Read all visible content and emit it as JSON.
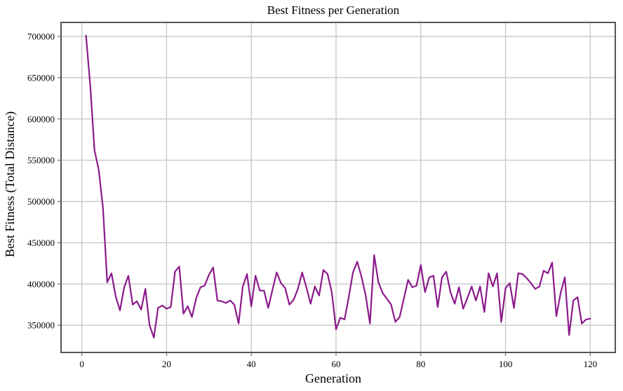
{
  "chart_data": {
    "type": "line",
    "title": "Best Fitness per Generation",
    "xlabel": "Generation",
    "ylabel": "Best Fitness (Total Distance)",
    "xlim": [
      -4.9,
      125.9
    ],
    "ylim": [
      317000,
      717000
    ],
    "x_ticks": [
      0,
      20,
      40,
      60,
      80,
      100,
      120
    ],
    "x_tick_labels": [
      "0",
      "20",
      "40",
      "60",
      "80",
      "100",
      "120"
    ],
    "y_ticks": [
      350000,
      400000,
      450000,
      500000,
      550000,
      600000,
      650000,
      700000
    ],
    "y_tick_labels": [
      "350000",
      "400000",
      "450000",
      "500000",
      "550000",
      "600000",
      "650000",
      "700000"
    ],
    "grid": true,
    "line_color": "#8b1a8b",
    "series": [
      {
        "name": "",
        "x": [
          1,
          2,
          3,
          4,
          5,
          6,
          7,
          8,
          9,
          10,
          11,
          12,
          13,
          14,
          15,
          16,
          17,
          18,
          19,
          20,
          21,
          22,
          23,
          24,
          25,
          26,
          27,
          28,
          29,
          30,
          31,
          32,
          33,
          34,
          35,
          36,
          37,
          38,
          39,
          40,
          41,
          42,
          43,
          44,
          45,
          46,
          47,
          48,
          49,
          50,
          51,
          52,
          53,
          54,
          55,
          56,
          57,
          58,
          59,
          60,
          61,
          62,
          63,
          64,
          65,
          66,
          67,
          68,
          69,
          70,
          71,
          72,
          73,
          74,
          75,
          76,
          77,
          78,
          79,
          80,
          81,
          82,
          83,
          84,
          85,
          86,
          87,
          88,
          89,
          90,
          91,
          92,
          93,
          94,
          95,
          96,
          97,
          98,
          99,
          100,
          101,
          102,
          103,
          104,
          105,
          106,
          107,
          108,
          109,
          110,
          111,
          112,
          113,
          114,
          115,
          116,
          117,
          118,
          119,
          120
        ],
        "y": [
          701000,
          640000,
          562000,
          538000,
          492000,
          402000,
          413000,
          385000,
          368000,
          396000,
          410000,
          375000,
          379000,
          369000,
          394000,
          350000,
          335000,
          371000,
          374000,
          370000,
          372000,
          415000,
          421000,
          364000,
          373000,
          360000,
          383000,
          396000,
          398000,
          411000,
          420000,
          380000,
          379000,
          377000,
          380000,
          375000,
          352000,
          397000,
          412000,
          373000,
          410000,
          392000,
          392000,
          371000,
          393000,
          414000,
          401000,
          395000,
          375000,
          381000,
          394000,
          414000,
          396000,
          376000,
          397000,
          386000,
          417000,
          412000,
          390000,
          345000,
          359000,
          357000,
          384000,
          414000,
          427000,
          409000,
          386000,
          352000,
          435000,
          402000,
          389000,
          382000,
          375000,
          354000,
          360000,
          382000,
          405000,
          396000,
          398000,
          423000,
          390000,
          408000,
          410000,
          372000,
          408000,
          415000,
          390000,
          376000,
          396000,
          370000,
          383000,
          397000,
          380000,
          397000,
          366000,
          413000,
          397000,
          413000,
          354000,
          395000,
          401000,
          371000,
          413000,
          412000,
          407000,
          401000,
          394000,
          397000,
          416000,
          413000,
          426000,
          361000,
          389000,
          408000,
          338000,
          380000,
          384000,
          352000,
          357000,
          358000
        ]
      }
    ]
  }
}
